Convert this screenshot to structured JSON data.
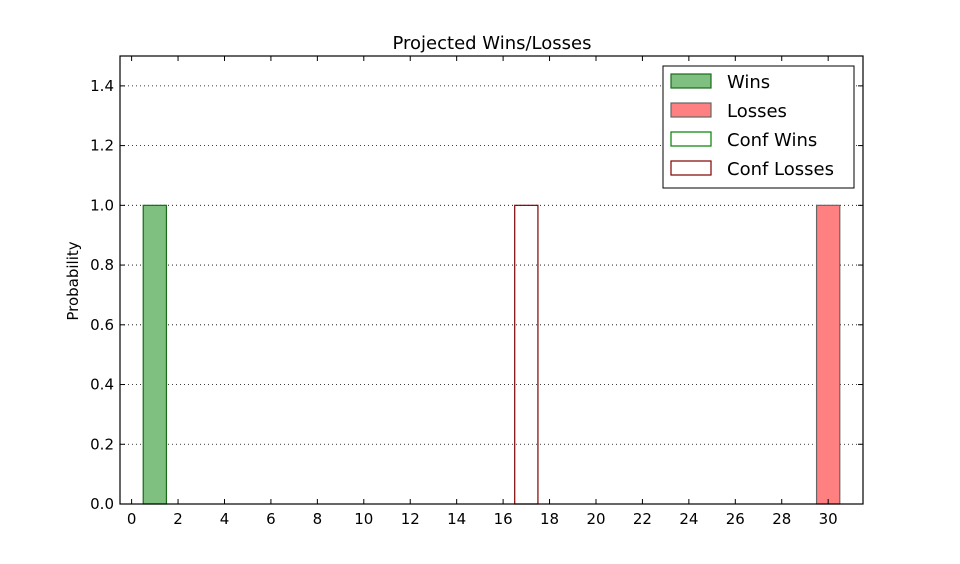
{
  "chart_data": {
    "type": "bar",
    "title": "Projected Wins/Losses",
    "xlabel": "",
    "ylabel": "Probability",
    "xlim": [
      -0.5,
      31.5
    ],
    "ylim": [
      0,
      1.5
    ],
    "xticks": [
      0,
      2,
      4,
      6,
      8,
      10,
      12,
      14,
      16,
      18,
      20,
      22,
      24,
      26,
      28,
      30
    ],
    "yticks": [
      0.0,
      0.2,
      0.4,
      0.6,
      0.8,
      1.0,
      1.2,
      1.4
    ],
    "ytick_labels": [
      "0.0",
      "0.2",
      "0.4",
      "0.6",
      "0.8",
      "1.0",
      "1.2",
      "1.4"
    ],
    "grid": "horizontal dotted",
    "legend_position": "top-right",
    "series": [
      {
        "name": "Wins",
        "style": "filled",
        "fill": "#7fbf7f",
        "stroke": "#1a6b1a",
        "bars": [
          {
            "x": 1,
            "value": 1.0
          }
        ]
      },
      {
        "name": "Losses",
        "style": "filled",
        "fill": "#ff8080",
        "stroke": "#666666",
        "bars": [
          {
            "x": 30,
            "value": 1.0
          }
        ]
      },
      {
        "name": "Conf Wins",
        "style": "outline",
        "fill": "none",
        "stroke": "#008000",
        "bars": []
      },
      {
        "name": "Conf Losses",
        "style": "outline",
        "fill": "none",
        "stroke": "#800000",
        "bars": [
          {
            "x": 17,
            "value": 1.0
          }
        ]
      }
    ]
  }
}
